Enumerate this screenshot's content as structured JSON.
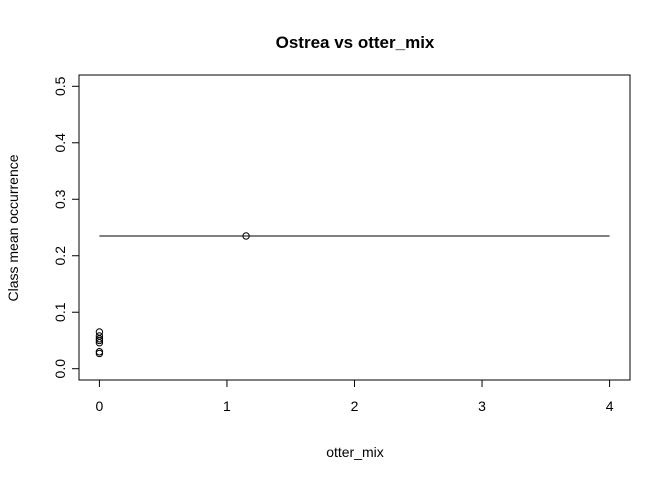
{
  "chart_data": {
    "type": "scatter",
    "title": "Ostrea vs otter_mix",
    "xlabel": "otter_mix",
    "ylabel": "Class mean occurrence",
    "xlim": [
      -0.16,
      4.16
    ],
    "ylim": [
      -0.02,
      0.52
    ],
    "x_ticks": [
      0,
      1,
      2,
      3,
      4
    ],
    "y_ticks": [
      0.0,
      0.1,
      0.2,
      0.3,
      0.4,
      0.5
    ],
    "x_tick_labels": [
      "0",
      "1",
      "2",
      "3",
      "4"
    ],
    "y_tick_labels": [
      "0.0",
      "0.1",
      "0.2",
      "0.3",
      "0.4",
      "0.5"
    ],
    "grid": false,
    "points": [
      {
        "x": 0,
        "y": 0.065
      },
      {
        "x": 0,
        "y": 0.058
      },
      {
        "x": 0,
        "y": 0.053
      },
      {
        "x": 0,
        "y": 0.05
      },
      {
        "x": 0,
        "y": 0.046
      },
      {
        "x": 0,
        "y": 0.03
      },
      {
        "x": 0,
        "y": 0.027
      },
      {
        "x": 1.15,
        "y": 0.235
      }
    ],
    "reference_line": {
      "x": [
        0,
        4
      ],
      "y": [
        0.235,
        0.235
      ]
    }
  }
}
